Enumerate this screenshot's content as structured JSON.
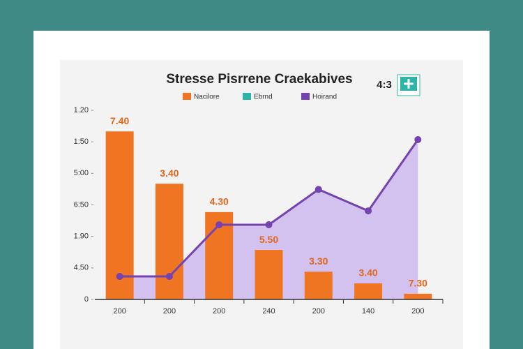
{
  "chart_data": {
    "type": "bar_line",
    "title": "Stresse Pisrrene Craekabives",
    "badge": "4:3",
    "categories": [
      "200",
      "200",
      "200",
      "240",
      "200",
      "140",
      "200"
    ],
    "series": [
      {
        "name": "Nacilore",
        "color": "#f07522",
        "type": "bar",
        "values": [
          5.33,
          3.67,
          2.77,
          1.57,
          0.88,
          0.51,
          0.18
        ]
      },
      {
        "name": "Ebrnd",
        "color": "#2bb5a8",
        "type": "none",
        "values": [
          null,
          null,
          null,
          null,
          null,
          null,
          null
        ]
      },
      {
        "name": "Hoirand",
        "color": "#7443b0",
        "type": "line",
        "values": [
          0.73,
          0.73,
          2.37,
          2.37,
          3.49,
          2.81,
          5.07
        ]
      }
    ],
    "annotations": [
      "7.40",
      "3.40",
      "4.30",
      "5.50",
      "3.30",
      "3.40",
      "7.30"
    ],
    "ylim": [
      0,
      6
    ],
    "yticks": [
      0,
      {
        "value": 1,
        "label": "4.50"
      },
      {
        "value": 2,
        "label": "1.90"
      },
      {
        "value": 3,
        "label": "6:50"
      },
      {
        "value": 4,
        "label": "5:00"
      },
      {
        "value": 5,
        "label": "1:50"
      },
      {
        "value": 6,
        "label": "1.20"
      }
    ],
    "area_color": "#cdb8ee"
  }
}
